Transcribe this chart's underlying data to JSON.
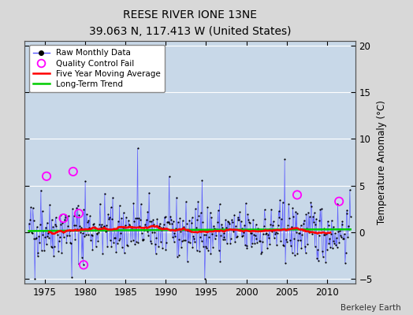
{
  "title": "REESE RIVER IONE 13NE",
  "subtitle": "39.063 N, 117.413 W (United States)",
  "ylabel": "Temperature Anomaly (°C)",
  "credit": "Berkeley Earth",
  "xlim": [
    1972.5,
    2013.5
  ],
  "ylim": [
    -5.5,
    20.5
  ],
  "yticks": [
    -5,
    0,
    5,
    10,
    15,
    20
  ],
  "xticks": [
    1975,
    1980,
    1985,
    1990,
    1995,
    2000,
    2005,
    2010
  ],
  "fig_bg_color": "#d8d8d8",
  "plot_bg_color": "#c8d8e8",
  "raw_line_color": "#5555ff",
  "raw_marker_color": "#000000",
  "moving_avg_color": "#ff0000",
  "trend_color": "#00cc00",
  "qc_fail_color": "#ff00ff",
  "grid_color": "#ffffff",
  "legend_entries": [
    "Raw Monthly Data",
    "Quality Control Fail",
    "Five Year Moving Average",
    "Long-Term Trend"
  ],
  "qc_years": [
    1975.2,
    1977.3,
    1978.5,
    1979.2,
    1979.8,
    2006.3,
    2011.5
  ],
  "qc_vals": [
    6.0,
    1.5,
    6.5,
    2.0,
    -3.5,
    4.0,
    3.3
  ],
  "spike_1986_year": 1986.5,
  "spike_1986_val": 9.0,
  "spike_2005_year": 2004.8,
  "spike_2005_val": 7.8,
  "spike_1995_year": 1994.5,
  "spike_1995_val": 5.6,
  "low_1974_year": 1973.8,
  "low_1974_val": -5.0,
  "seed": 42
}
